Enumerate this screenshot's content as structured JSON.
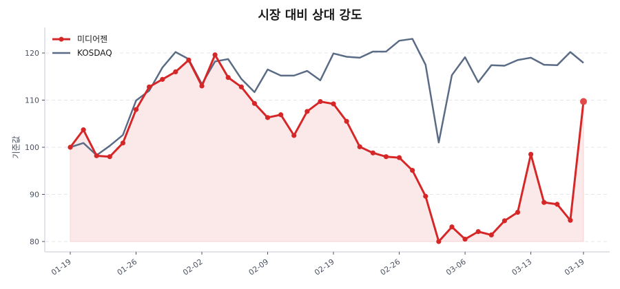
{
  "chart_data": {
    "type": "line",
    "title": "시장 대비 상대 강도",
    "xlabel": "",
    "ylabel": "기준값",
    "ylim": [
      78,
      125.5
    ],
    "yticks": [
      80,
      90,
      100,
      110,
      120
    ],
    "xtick_labels": [
      {
        "index": 0,
        "label": "01-19"
      },
      {
        "index": 5,
        "label": "01-26"
      },
      {
        "index": 10,
        "label": "02-02"
      },
      {
        "index": 15,
        "label": "02-09"
      },
      {
        "index": 20,
        "label": "02-19"
      },
      {
        "index": 25,
        "label": "02-26"
      },
      {
        "index": 30,
        "label": "03-06"
      },
      {
        "index": 35,
        "label": "03-13"
      },
      {
        "index": 39,
        "label": "03-19"
      }
    ],
    "grid": {
      "y": true,
      "x": false,
      "style": "dashed"
    },
    "legend_position": "upper left",
    "baseline": 80,
    "series": [
      {
        "name": "미디어젠",
        "color": "#d62728",
        "markers": true,
        "fill": "#fbe9e9",
        "values": [
          100.0,
          103.7,
          98.2,
          98.0,
          100.9,
          108.0,
          112.8,
          114.4,
          116.0,
          118.5,
          113.0,
          119.6,
          114.8,
          112.8,
          109.3,
          106.3,
          106.9,
          102.5,
          107.6,
          109.7,
          109.2,
          105.5,
          100.1,
          98.8,
          98.0,
          97.8,
          95.1,
          89.6,
          80.0,
          83.1,
          80.5,
          82.1,
          81.4,
          84.4,
          86.2,
          98.5,
          88.3,
          87.9,
          84.5,
          109.7
        ]
      },
      {
        "name": "KOSDAQ",
        "color": "#5a6b85",
        "markers": false,
        "values": [
          100.0,
          100.9,
          98.3,
          100.3,
          102.6,
          109.9,
          112.0,
          116.9,
          120.2,
          118.7,
          113.4,
          118.2,
          118.7,
          114.5,
          111.7,
          116.5,
          115.2,
          115.2,
          116.2,
          114.2,
          119.9,
          119.2,
          119.0,
          120.3,
          120.3,
          122.6,
          123.0,
          117.5,
          101.0,
          115.3,
          119.1,
          113.8,
          117.4,
          117.3,
          118.5,
          119.0,
          117.5,
          117.4,
          120.2,
          117.9
        ]
      }
    ]
  }
}
